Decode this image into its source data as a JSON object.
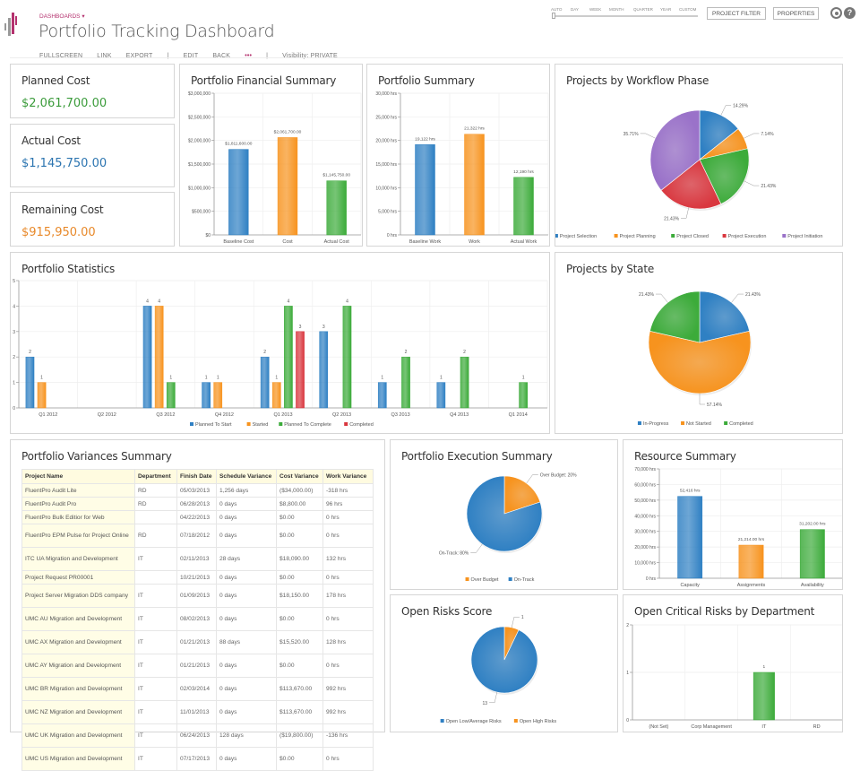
{
  "header": {
    "nav_label": "DASHBOARDS",
    "title": "Portfolio Tracking Dashboard",
    "menu": [
      "FULLSCREEN",
      "LINK",
      "EXPORT",
      "|",
      "EDIT",
      "BACK",
      "•••",
      "|",
      "Visibility: PRIVATE"
    ],
    "time_scale": [
      "AUTO",
      "DAY",
      "WEEK",
      "MONTH",
      "QUARTER",
      "YEAR",
      "CUSTOM"
    ],
    "project_filter": "PROJECT FILTER",
    "properties": "PROPERTIES",
    "icons": [
      "gear-icon",
      "help-icon"
    ],
    "accent": "#b4316e"
  },
  "kpis": [
    {
      "label": "Planned Cost",
      "value": "$2,061,700.00",
      "color": "#3a9b3a"
    },
    {
      "label": "Actual Cost",
      "value": "$1,145,750.00",
      "color": "#2b74b0"
    },
    {
      "label": "Remaining Cost",
      "value": "$915,950.00",
      "color": "#e8892a"
    }
  ],
  "colors": {
    "blue": "#2f80c3",
    "orange": "#f7931e",
    "green": "#3cab3a",
    "red": "#d9373f",
    "purple": "#9a72c9"
  },
  "chart_data": [
    {
      "id": "financial",
      "title": "Portfolio Financial Summary",
      "type": "bar",
      "ylim": [
        0,
        3000000
      ],
      "yticks": [
        "$0",
        "$500,000",
        "$1,000,000",
        "$1,500,000",
        "$2,000,000",
        "$2,500,000",
        "$3,000,000"
      ],
      "categories": [
        "Baseline Cost",
        "Cost",
        "Actual Cost"
      ],
      "values": [
        1811600,
        2061700,
        1145750
      ],
      "labels": [
        "$1,811,600.00",
        "$2,061,700.00",
        "$1,145,750.00"
      ],
      "bar_colors": [
        "blue",
        "orange",
        "green"
      ]
    },
    {
      "id": "summary",
      "title": "Portfolio Summary",
      "type": "bar",
      "ylim": [
        0,
        30000
      ],
      "yticks": [
        "0 hrs",
        "5,000 hrs",
        "10,000 hrs",
        "15,000 hrs",
        "20,000 hrs",
        "25,000 hrs",
        "30,000 hrs"
      ],
      "categories": [
        "Baseline Work",
        "Work",
        "Actual Work"
      ],
      "values": [
        19122,
        21322,
        12190
      ],
      "labels": [
        "19,122 hrs",
        "21,322 hrs",
        "12,190 hrs"
      ],
      "bar_colors": [
        "blue",
        "orange",
        "green"
      ]
    },
    {
      "id": "workflow",
      "title": "Projects by Workflow Phase",
      "type": "pie",
      "slices": [
        {
          "name": "Project Selection",
          "value": 14.29,
          "label": "14.29%",
          "color": "blue"
        },
        {
          "name": "Project Planning",
          "value": 7.14,
          "label": "7.14%",
          "color": "orange"
        },
        {
          "name": "Project Closed",
          "value": 21.43,
          "label": "21.43%",
          "color": "green"
        },
        {
          "name": "Project Execution",
          "value": 21.43,
          "label": "21.43%",
          "color": "red"
        },
        {
          "name": "Project Initiation",
          "value": 35.71,
          "label": "35.71%",
          "color": "purple"
        }
      ],
      "legend": "bottom"
    },
    {
      "id": "stats",
      "title": "Portfolio Statistics",
      "type": "bar",
      "ylim": [
        0,
        5
      ],
      "yticks": [
        "0",
        "1",
        "2",
        "3",
        "4",
        "5"
      ],
      "categories": [
        "Q1 2012",
        "Q2 2012",
        "Q3 2012",
        "Q4 2012",
        "Q1 2013",
        "Q2 2013",
        "Q3 2013",
        "Q4 2013",
        "Q1 2014"
      ],
      "series": [
        {
          "name": "Planned To Start",
          "color": "blue",
          "values": [
            2,
            null,
            4,
            1,
            2,
            3,
            1,
            1,
            null
          ]
        },
        {
          "name": "Started",
          "color": "orange",
          "values": [
            1,
            null,
            4,
            1,
            1,
            null,
            null,
            null,
            null
          ]
        },
        {
          "name": "Planned To Complete",
          "color": "green",
          "values": [
            null,
            null,
            1,
            null,
            4,
            4,
            2,
            2,
            1
          ]
        },
        {
          "name": "Completed",
          "color": "red",
          "values": [
            null,
            null,
            null,
            null,
            3,
            null,
            null,
            null,
            null
          ]
        }
      ],
      "legend": "bottom"
    },
    {
      "id": "state",
      "title": "Projects by State",
      "type": "pie",
      "slices": [
        {
          "name": "In-Progress",
          "value": 21.43,
          "label": "21.43%",
          "color": "blue"
        },
        {
          "name": "Not Started",
          "value": 57.14,
          "label": "57.14%",
          "color": "orange"
        },
        {
          "name": "Completed",
          "value": 21.43,
          "label": "21.43%",
          "color": "green"
        }
      ],
      "legend": "bottom"
    },
    {
      "id": "execution",
      "title": "Portfolio Execution Summary",
      "type": "pie",
      "slices": [
        {
          "name": "Over Budget",
          "value": 20,
          "label": "Over Budget: 20%",
          "color": "orange"
        },
        {
          "name": "On-Track",
          "value": 80,
          "label": "On-Track: 80%",
          "color": "blue"
        }
      ],
      "legend": "bottom"
    },
    {
      "id": "resource",
      "title": "Resource Summary",
      "type": "bar",
      "ylim": [
        0,
        70000
      ],
      "yticks": [
        "0 hrs",
        "10,000 hrs",
        "20,000 hrs",
        "30,000 hrs",
        "40,000 hrs",
        "50,000 hrs",
        "60,000 hrs",
        "70,000 hrs"
      ],
      "categories": [
        "Capacity",
        "Assignments",
        "Availability"
      ],
      "values": [
        52416,
        21214,
        31202
      ],
      "labels": [
        "52,416 hrs",
        "21,214.00 hrs",
        "31,202.00 hrs"
      ],
      "bar_colors": [
        "blue",
        "orange",
        "green"
      ]
    },
    {
      "id": "risks",
      "title": "Open Risks Score",
      "type": "pie",
      "slices": [
        {
          "name": "Open High Risks",
          "value": 1,
          "label": "1",
          "color": "orange"
        },
        {
          "name": "Open Low/Average Risks",
          "value": 13,
          "label": "13",
          "color": "blue"
        }
      ],
      "legend_order": [
        "Open Low/Average Risks",
        "Open High Risks"
      ],
      "legend": "bottom"
    },
    {
      "id": "critical",
      "title": "Open Critical Risks by Department",
      "type": "bar",
      "ylim": [
        0,
        2
      ],
      "yticks": [
        "0",
        "1",
        "2"
      ],
      "categories": [
        "(Not Set)",
        "Corp Management",
        "IT",
        "RD"
      ],
      "values": [
        null,
        null,
        1,
        null
      ],
      "labels": [
        "",
        "",
        "1",
        ""
      ],
      "bar_colors": [
        "green",
        "green",
        "green",
        "green"
      ]
    }
  ],
  "variances": {
    "title": "Portfolio Variances Summary",
    "columns": [
      "Project Name",
      "Department",
      "Finish Date",
      "Schedule Variance",
      "Cost Variance",
      "Work Variance"
    ],
    "rows": [
      [
        "FluentPro Audit Lite",
        "RD",
        "05/03/2013",
        "1,256 days",
        "($34,000.00)",
        "-318 hrs"
      ],
      [
        "FluentPro Audit Pro",
        "RD",
        "06/28/2013",
        "0 days",
        "$8,800.00",
        "96 hrs"
      ],
      [
        "FluentPro Bulk Editior for Web",
        "",
        "04/22/2013",
        "0 days",
        "$0.00",
        "0 hrs"
      ],
      [
        "FluentPro EPM Pulse for Project Online",
        "RD",
        "07/18/2012",
        "0 days",
        "$0.00",
        "0 hrs"
      ],
      [
        "ITC UA Migration and Development",
        "IT",
        "02/11/2013",
        "28 days",
        "$18,090.00",
        "132 hrs"
      ],
      [
        "Project Request PR00001",
        "",
        "10/21/2013",
        "0 days",
        "$0.00",
        "0 hrs"
      ],
      [
        "Project Server Migration DDS company",
        "IT",
        "01/09/2013",
        "0 days",
        "$18,150.00",
        "178 hrs"
      ],
      [
        "UMC AU Migration and Development",
        "IT",
        "08/02/2013",
        "0 days",
        "$0.00",
        "0 hrs"
      ],
      [
        "UMC AX Migration and Development",
        "IT",
        "01/21/2013",
        "88 days",
        "$15,520.00",
        "128 hrs"
      ],
      [
        "UMC AY Migration and Development",
        "IT",
        "01/21/2013",
        "0 days",
        "$0.00",
        "0 hrs"
      ],
      [
        "UMC BR Migration and Development",
        "IT",
        "02/03/2014",
        "0 days",
        "$113,670.00",
        "992 hrs"
      ],
      [
        "UMC NZ Migration and Development",
        "IT",
        "11/01/2013",
        "0 days",
        "$113,670.00",
        "992 hrs"
      ],
      [
        "UMC UK Migration and Development",
        "IT",
        "06/24/2013",
        "128 days",
        "($19,800.00)",
        "-136 hrs"
      ],
      [
        "UMC US Migration and Development",
        "IT",
        "07/17/2013",
        "0 days",
        "$0.00",
        "0 hrs"
      ]
    ]
  }
}
